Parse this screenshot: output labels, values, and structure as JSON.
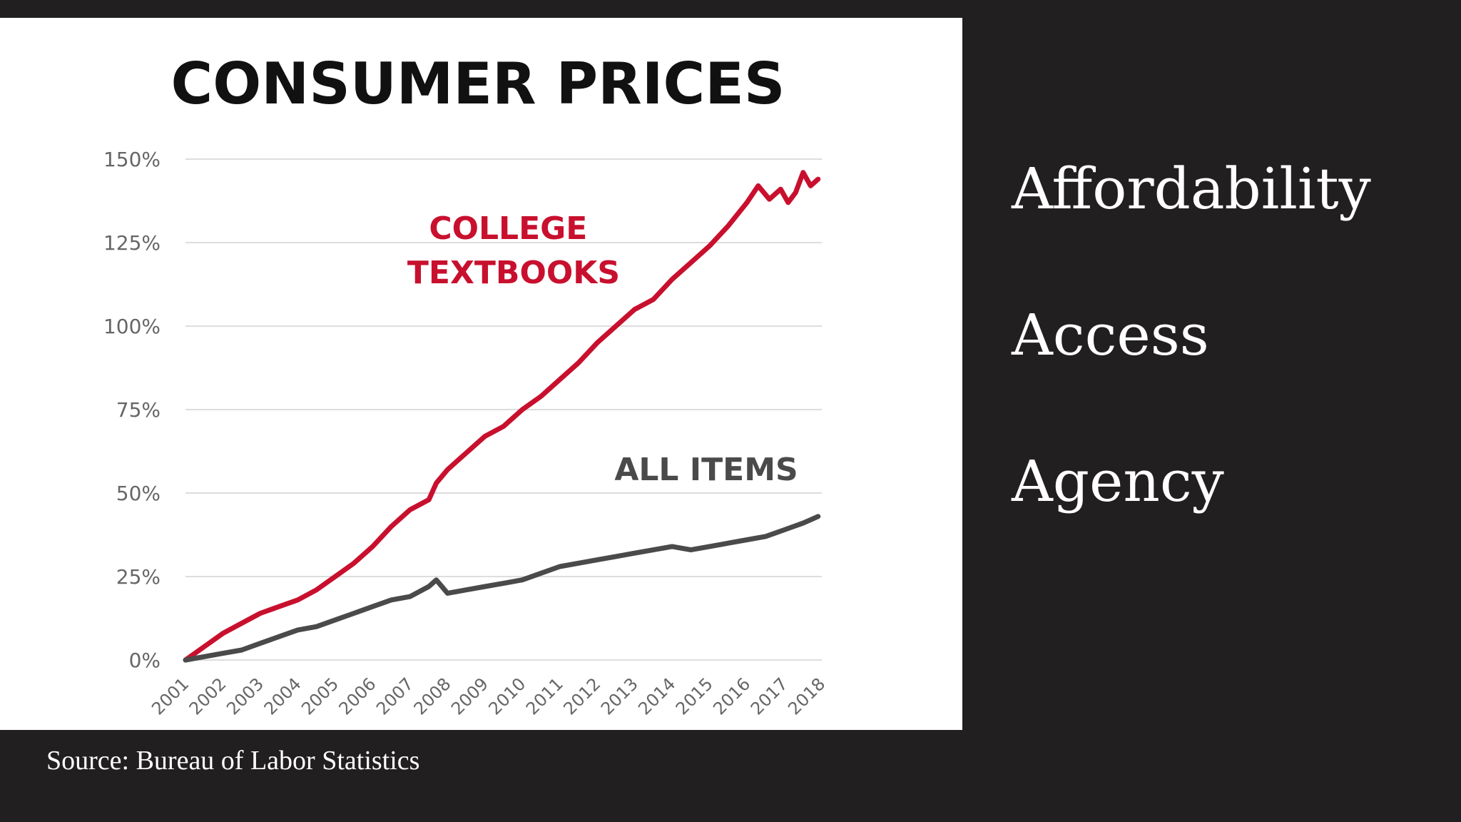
{
  "slide": {
    "bullets": [
      "Affordability",
      "Access",
      "Agency"
    ],
    "source": "Source: Bureau of Labor Statistics"
  },
  "colors": {
    "background": "#221f20",
    "textbooks": "#c8102e",
    "all_items": "#4a4a4a",
    "grid": "#dddddd"
  },
  "chart_data": {
    "type": "line",
    "title": "CONSUMER PRICES",
    "xlabel": "",
    "ylabel": "",
    "xlim": [
      2001,
      2018
    ],
    "ylim": [
      0,
      150
    ],
    "y_ticks": [
      0,
      25,
      50,
      75,
      100,
      125,
      150
    ],
    "y_tick_labels": [
      "0%",
      "25%",
      "50%",
      "75%",
      "100%",
      "125%",
      "150%"
    ],
    "x_tick_labels": [
      "2001",
      "2002",
      "2003",
      "2004",
      "2005",
      "2006",
      "2007",
      "2008",
      "2009",
      "2010",
      "2011",
      "2012",
      "2013",
      "2014",
      "2015",
      "2016",
      "2017",
      "2018"
    ],
    "grid": true,
    "legend": "inline labels",
    "series": [
      {
        "name": "COLLEGE\nTEXTBOOKS",
        "label_lines": [
          "COLLEGE",
          "TEXTBOOKS"
        ],
        "color": "#c8102e",
        "x": [
          2001,
          2001.5,
          2002,
          2002.5,
          2003,
          2003.5,
          2004,
          2004.5,
          2005,
          2005.5,
          2006,
          2006.5,
          2007,
          2007.5,
          2007.7,
          2008,
          2008.5,
          2009,
          2009.5,
          2010,
          2010.5,
          2011,
          2011.5,
          2012,
          2012.5,
          2013,
          2013.5,
          2014,
          2014.5,
          2015,
          2015.5,
          2016,
          2016.3,
          2016.6,
          2016.9,
          2017.1,
          2017.3,
          2017.5,
          2017.7,
          2017.9
        ],
        "values": [
          0,
          4,
          8,
          11,
          14,
          16,
          18,
          21,
          25,
          29,
          34,
          40,
          45,
          48,
          53,
          57,
          62,
          67,
          70,
          75,
          79,
          84,
          89,
          95,
          100,
          105,
          108,
          114,
          119,
          124,
          130,
          137,
          142,
          138,
          141,
          137,
          140,
          146,
          142,
          144
        ]
      },
      {
        "name": "ALL ITEMS",
        "label_lines": [
          "ALL ITEMS"
        ],
        "color": "#4a4a4a",
        "x": [
          2001,
          2001.5,
          2002,
          2002.5,
          2003,
          2003.5,
          2004,
          2004.5,
          2005,
          2005.5,
          2006,
          2006.5,
          2007,
          2007.5,
          2007.7,
          2008,
          2008.5,
          2009,
          2009.5,
          2010,
          2010.5,
          2011,
          2011.5,
          2012,
          2012.5,
          2013,
          2013.5,
          2014,
          2014.5,
          2015,
          2015.5,
          2016,
          2016.5,
          2017,
          2017.5,
          2017.9
        ],
        "values": [
          0,
          1,
          2,
          3,
          5,
          7,
          9,
          10,
          12,
          14,
          16,
          18,
          19,
          22,
          24,
          20,
          21,
          22,
          23,
          24,
          26,
          28,
          29,
          30,
          31,
          32,
          33,
          34,
          33,
          34,
          35,
          36,
          37,
          39,
          41,
          43
        ]
      }
    ]
  }
}
